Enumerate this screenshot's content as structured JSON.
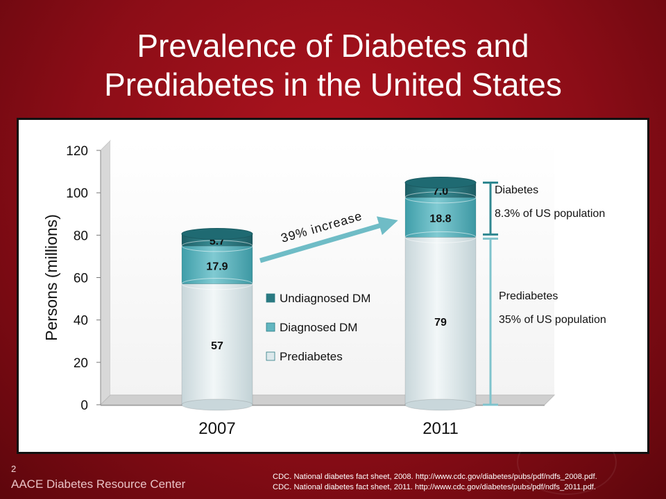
{
  "slide": {
    "title_line1": "Prevalence of Diabetes and",
    "title_line2": "Prediabetes in the United States",
    "page_number": "2",
    "footer_org": "AACE Diabetes Resource Center",
    "sources": [
      "CDC. National diabetes fact sheet, 2008. http://www.cdc.gov/diabetes/pubs/pdf/ndfs_2008.pdf.",
      "CDC. National diabetes fact sheet, 2011. http://www.cdc.gov/diabetes/pubs/pdf/ndfs_2011.pdf."
    ]
  },
  "chart_data": {
    "type": "bar",
    "stacked": true,
    "categories": [
      "2007",
      "2011"
    ],
    "series": [
      {
        "name": "Prediabetes",
        "values": [
          57,
          79
        ],
        "labels": [
          "57",
          "79"
        ],
        "color": "#dde9ec"
      },
      {
        "name": "Diagnosed DM",
        "values": [
          17.9,
          18.8
        ],
        "labels": [
          "17.9",
          "18.8"
        ],
        "color": "#62b6c0"
      },
      {
        "name": "Undiagnosed DM",
        "values": [
          5.7,
          7.0
        ],
        "labels": [
          "5.7",
          "7.0"
        ],
        "color": "#2a7a82"
      }
    ],
    "legend_order": [
      "Undiagnosed DM",
      "Diagnosed DM",
      "Prediabetes"
    ],
    "ylabel": "Persons (millions)",
    "ylim": [
      0,
      120
    ],
    "yticks": [
      "0",
      "20",
      "40",
      "60",
      "80",
      "100",
      "120"
    ],
    "yticks_values": [
      0,
      20,
      40,
      60,
      80,
      100,
      120
    ],
    "legend_position": "center",
    "annotations": {
      "arrow_label": "39% increase",
      "diabetes_label": "Diabetes",
      "diabetes_pct": "8.3% of US population",
      "prediabetes_label": "Prediabetes",
      "prediabetes_pct": "35% of US population"
    },
    "colors": {
      "bracket_diabetes": "#2f8790",
      "bracket_prediabetes": "#7fc3cc",
      "arrow": "#6fbcc6"
    }
  }
}
